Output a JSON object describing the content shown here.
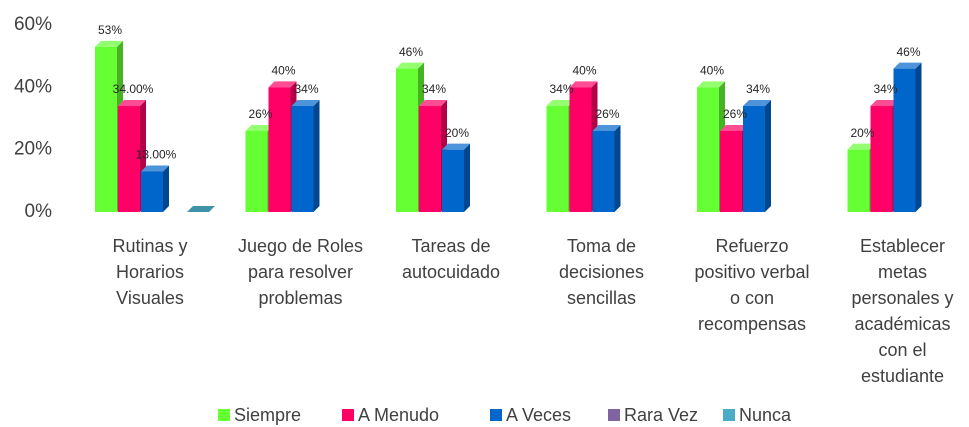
{
  "chart_data": {
    "type": "bar3d",
    "categories": [
      "Rutinas y Horarios Visuales",
      "Juego de Roles para resolver problemas",
      "Tareas de autocuidado",
      "Toma de decisiones sencillas",
      "Refuerzo positivo verbal o con recompensas",
      "Establecer metas personales y académicas con el estudiante"
    ],
    "series": [
      {
        "name": "Siempre",
        "color": "#66ff33",
        "values": [
          53,
          26,
          46,
          34,
          40,
          20
        ],
        "value_labels": [
          "53%",
          "26%",
          "46%",
          "34%",
          "40%",
          "20%"
        ]
      },
      {
        "name": "A Menudo",
        "color": "#ff0066",
        "values": [
          34,
          40,
          34,
          40,
          26,
          34
        ],
        "value_labels": [
          "34.00%",
          "40%",
          "34%",
          "40%",
          "26%",
          "34%"
        ]
      },
      {
        "name": "A Veces",
        "color": "#0066cc",
        "values": [
          13,
          34,
          20,
          26,
          34,
          46
        ],
        "value_labels": [
          "13.00%",
          "34%",
          "20%",
          "26%",
          "34%",
          "46%"
        ]
      },
      {
        "name": "Rara Vez",
        "color": "#8064a2",
        "values": [
          null,
          null,
          null,
          null,
          null,
          null
        ]
      },
      {
        "name": "Nunca",
        "color": "#4bacc6",
        "values": [
          0,
          null,
          null,
          null,
          null,
          null
        ]
      }
    ],
    "ylim": [
      0,
      60
    ],
    "yticks": [
      {
        "value": 0,
        "label": "0%"
      },
      {
        "value": 20,
        "label": "20%"
      },
      {
        "value": 40,
        "label": "40%"
      },
      {
        "value": 60,
        "label": "60%"
      }
    ],
    "legend": "bottom"
  }
}
